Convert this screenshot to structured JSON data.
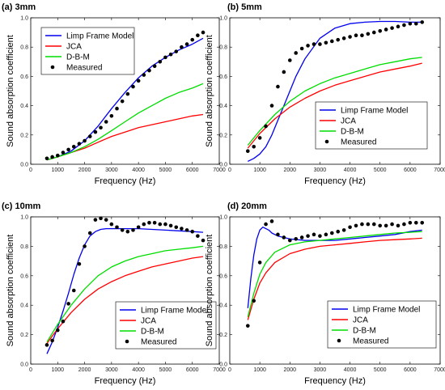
{
  "figure": {
    "ylabel": "Sound absorption coefficient",
    "xlabel": "Frequency (Hz)"
  },
  "legend": {
    "limp": "Limp Frame Model",
    "jca": "JCA",
    "dbm": "D-B-M",
    "measured": "Measured"
  },
  "colors": {
    "limp": "#0000ee",
    "jca": "#ff0000",
    "dbm": "#00dd00",
    "measured": "#000000"
  },
  "chart_data": [
    {
      "type": "line",
      "title": "(a) 3mm",
      "xlabel": "Frequency (Hz)",
      "ylabel": "Sound absorption coefficient",
      "xlim": [
        0,
        7000
      ],
      "ylim": [
        0,
        1.0
      ],
      "xticks": [
        "0",
        "1000",
        "2000",
        "3000",
        "4000",
        "5000",
        "6000",
        "7000"
      ],
      "yticks": [
        "0.0",
        "0.2",
        "0.4",
        "0.6",
        "0.8",
        "1.0"
      ],
      "legend_position": "top-left",
      "series": [
        {
          "name": "Limp Frame Model",
          "x": [
            600,
            1000,
            1500,
            2000,
            2500,
            3000,
            3500,
            4000,
            4500,
            5000,
            5500,
            6000,
            6400
          ],
          "y": [
            0.03,
            0.05,
            0.09,
            0.16,
            0.26,
            0.38,
            0.49,
            0.59,
            0.67,
            0.73,
            0.78,
            0.82,
            0.86
          ]
        },
        {
          "name": "JCA",
          "x": [
            600,
            1000,
            1500,
            2000,
            2500,
            3000,
            3500,
            4000,
            4500,
            5000,
            5500,
            6000,
            6400
          ],
          "y": [
            0.03,
            0.05,
            0.08,
            0.11,
            0.15,
            0.19,
            0.22,
            0.25,
            0.27,
            0.29,
            0.31,
            0.33,
            0.34
          ]
        },
        {
          "name": "D-B-M",
          "x": [
            600,
            1000,
            1500,
            2000,
            2500,
            3000,
            3500,
            4000,
            4500,
            5000,
            5500,
            6000,
            6400
          ],
          "y": [
            0.03,
            0.05,
            0.08,
            0.12,
            0.17,
            0.23,
            0.29,
            0.35,
            0.4,
            0.45,
            0.49,
            0.52,
            0.55
          ]
        },
        {
          "name": "Measured",
          "marker": "dot",
          "x": [
            600,
            800,
            1000,
            1200,
            1400,
            1600,
            1800,
            2000,
            2200,
            2400,
            2600,
            2800,
            3000,
            3200,
            3400,
            3600,
            3800,
            4000,
            4200,
            4400,
            4600,
            4800,
            5000,
            5200,
            5400,
            5600,
            5800,
            6000,
            6200,
            6400
          ],
          "y": [
            0.04,
            0.05,
            0.06,
            0.08,
            0.1,
            0.12,
            0.14,
            0.16,
            0.19,
            0.22,
            0.25,
            0.29,
            0.33,
            0.38,
            0.43,
            0.48,
            0.53,
            0.57,
            0.61,
            0.64,
            0.67,
            0.7,
            0.73,
            0.75,
            0.77,
            0.8,
            0.82,
            0.85,
            0.88,
            0.9
          ]
        }
      ]
    },
    {
      "type": "line",
      "title": "(b) 5mm",
      "xlabel": "Frequency (Hz)",
      "ylabel": "Sound absorption coefficient",
      "xlim": [
        0,
        7000
      ],
      "ylim": [
        0,
        1.0
      ],
      "xticks": [
        "0",
        "1000",
        "2000",
        "3000",
        "4000",
        "5000",
        "6000",
        "7000"
      ],
      "yticks": [
        "0.0",
        "0.2",
        "0.4",
        "0.6",
        "0.8",
        "1.0"
      ],
      "legend_position": "bottom-right",
      "series": [
        {
          "name": "Limp Frame Model",
          "x": [
            600,
            800,
            1000,
            1200,
            1400,
            1600,
            1800,
            2000,
            2200,
            2500,
            3000,
            3500,
            4000,
            4500,
            5000,
            5500,
            6000,
            6400
          ],
          "y": [
            0.02,
            0.04,
            0.07,
            0.12,
            0.2,
            0.3,
            0.4,
            0.5,
            0.6,
            0.72,
            0.86,
            0.93,
            0.96,
            0.97,
            0.975,
            0.975,
            0.97,
            0.97
          ]
        },
        {
          "name": "JCA",
          "x": [
            600,
            800,
            1000,
            1500,
            2000,
            2500,
            3000,
            3500,
            4000,
            4500,
            5000,
            5500,
            6000,
            6400
          ],
          "y": [
            0.11,
            0.16,
            0.21,
            0.31,
            0.39,
            0.45,
            0.5,
            0.54,
            0.57,
            0.6,
            0.63,
            0.65,
            0.67,
            0.69
          ]
        },
        {
          "name": "D-B-M",
          "x": [
            600,
            800,
            1000,
            1500,
            2000,
            2500,
            3000,
            3500,
            4000,
            4500,
            5000,
            5500,
            6000,
            6400
          ],
          "y": [
            0.13,
            0.18,
            0.23,
            0.34,
            0.43,
            0.5,
            0.55,
            0.59,
            0.62,
            0.65,
            0.68,
            0.7,
            0.72,
            0.73
          ]
        },
        {
          "name": "Measured",
          "marker": "dot",
          "x": [
            600,
            800,
            1000,
            1200,
            1400,
            1600,
            1800,
            2000,
            2200,
            2400,
            2600,
            2800,
            3000,
            3200,
            3400,
            3600,
            3800,
            4000,
            4200,
            4400,
            4600,
            4800,
            5000,
            5200,
            5400,
            5600,
            5800,
            6000,
            6200,
            6400
          ],
          "y": [
            0.09,
            0.12,
            0.18,
            0.26,
            0.4,
            0.53,
            0.63,
            0.71,
            0.76,
            0.79,
            0.81,
            0.82,
            0.82,
            0.83,
            0.84,
            0.85,
            0.86,
            0.87,
            0.88,
            0.88,
            0.89,
            0.9,
            0.91,
            0.92,
            0.93,
            0.94,
            0.95,
            0.96,
            0.96,
            0.97
          ]
        }
      ]
    },
    {
      "type": "line",
      "title": "(c) 10mm",
      "xlabel": "Frequency (Hz)",
      "ylabel": "Sound absorption coefficient",
      "xlim": [
        0,
        7000
      ],
      "ylim": [
        0,
        1.0
      ],
      "xticks": [
        "0",
        "1000",
        "2000",
        "3000",
        "4000",
        "5000",
        "6000",
        "7000"
      ],
      "yticks": [
        "0.0",
        "0.2",
        "0.4",
        "0.6",
        "0.8",
        "1.0"
      ],
      "legend_position": "bottom-right",
      "series": [
        {
          "name": "Limp Frame Model",
          "x": [
            600,
            800,
            1000,
            1200,
            1400,
            1600,
            1800,
            2000,
            2200,
            2400,
            2600,
            2800,
            3000,
            3500,
            4000,
            4500,
            5000,
            5500,
            6000,
            6400
          ],
          "y": [
            0.07,
            0.15,
            0.25,
            0.36,
            0.48,
            0.61,
            0.72,
            0.81,
            0.87,
            0.9,
            0.915,
            0.92,
            0.92,
            0.92,
            0.92,
            0.915,
            0.91,
            0.905,
            0.9,
            0.895
          ]
        },
        {
          "name": "JCA",
          "x": [
            600,
            800,
            1000,
            1500,
            2000,
            2500,
            3000,
            3500,
            4000,
            4500,
            5000,
            5500,
            6000,
            6400
          ],
          "y": [
            0.14,
            0.19,
            0.24,
            0.35,
            0.44,
            0.51,
            0.56,
            0.6,
            0.63,
            0.66,
            0.68,
            0.7,
            0.72,
            0.73
          ]
        },
        {
          "name": "D-B-M",
          "x": [
            600,
            800,
            1000,
            1500,
            2000,
            2500,
            3000,
            3500,
            4000,
            4500,
            5000,
            5500,
            6000,
            6400
          ],
          "y": [
            0.15,
            0.21,
            0.27,
            0.4,
            0.51,
            0.6,
            0.66,
            0.7,
            0.73,
            0.75,
            0.77,
            0.78,
            0.79,
            0.8
          ]
        },
        {
          "name": "Measured",
          "marker": "dot",
          "x": [
            600,
            800,
            1000,
            1200,
            1400,
            1600,
            1800,
            2000,
            2200,
            2400,
            2600,
            2800,
            3000,
            3200,
            3400,
            3600,
            3800,
            4000,
            4200,
            4400,
            4600,
            4800,
            5000,
            5200,
            5400,
            5600,
            5800,
            6000,
            6200,
            6400
          ],
          "y": [
            0.13,
            0.16,
            0.23,
            0.29,
            0.41,
            0.5,
            0.68,
            0.8,
            0.89,
            0.98,
            0.99,
            0.98,
            0.95,
            0.93,
            0.91,
            0.9,
            0.91,
            0.93,
            0.95,
            0.96,
            0.96,
            0.95,
            0.95,
            0.94,
            0.93,
            0.92,
            0.91,
            0.9,
            0.87,
            0.84
          ]
        }
      ]
    },
    {
      "type": "line",
      "title": "(d) 20mm",
      "xlabel": "Frequency (Hz)",
      "ylabel": "Sound absorption coefficient",
      "xlim": [
        0,
        7000
      ],
      "ylim": [
        0,
        1.0
      ],
      "xticks": [
        "0",
        "1000",
        "2000",
        "3000",
        "4000",
        "5000",
        "6000",
        "7000"
      ],
      "yticks": [
        "0.0",
        "0.2",
        "0.4",
        "0.6",
        "0.8",
        "1.0"
      ],
      "legend_position": "bottom-right",
      "series": [
        {
          "name": "Limp Frame Model",
          "x": [
            600,
            700,
            800,
            900,
            1000,
            1100,
            1200,
            1300,
            1400,
            1600,
            1800,
            2000,
            2500,
            3000,
            3500,
            4000,
            4500,
            5000,
            5500,
            6000,
            6400
          ],
          "y": [
            0.38,
            0.58,
            0.74,
            0.85,
            0.91,
            0.93,
            0.92,
            0.91,
            0.89,
            0.87,
            0.86,
            0.85,
            0.84,
            0.84,
            0.84,
            0.85,
            0.86,
            0.87,
            0.88,
            0.9,
            0.91
          ]
        },
        {
          "name": "JCA",
          "x": [
            600,
            800,
            1000,
            1200,
            1500,
            2000,
            2500,
            3000,
            3500,
            4000,
            4500,
            5000,
            5500,
            6000,
            6400
          ],
          "y": [
            0.3,
            0.44,
            0.55,
            0.62,
            0.69,
            0.75,
            0.78,
            0.8,
            0.81,
            0.82,
            0.83,
            0.84,
            0.845,
            0.85,
            0.855
          ]
        },
        {
          "name": "D-B-M",
          "x": [
            600,
            800,
            1000,
            1200,
            1500,
            2000,
            2500,
            3000,
            3500,
            4000,
            4500,
            5000,
            5500,
            6000,
            6400
          ],
          "y": [
            0.32,
            0.48,
            0.61,
            0.69,
            0.76,
            0.81,
            0.83,
            0.84,
            0.85,
            0.86,
            0.87,
            0.88,
            0.89,
            0.895,
            0.9
          ]
        },
        {
          "name": "Measured",
          "marker": "dot",
          "x": [
            600,
            800,
            1000,
            1200,
            1400,
            1600,
            1800,
            2000,
            2200,
            2400,
            2600,
            2800,
            3000,
            3200,
            3400,
            3600,
            3800,
            4000,
            4200,
            4400,
            4600,
            4800,
            5000,
            5200,
            5400,
            5600,
            5800,
            6000,
            6200,
            6400
          ],
          "y": [
            0.26,
            0.43,
            0.69,
            0.95,
            0.97,
            0.88,
            0.86,
            0.84,
            0.85,
            0.86,
            0.87,
            0.88,
            0.87,
            0.88,
            0.89,
            0.9,
            0.91,
            0.93,
            0.94,
            0.95,
            0.95,
            0.95,
            0.94,
            0.94,
            0.95,
            0.94,
            0.95,
            0.96,
            0.96,
            0.96
          ]
        }
      ]
    }
  ]
}
